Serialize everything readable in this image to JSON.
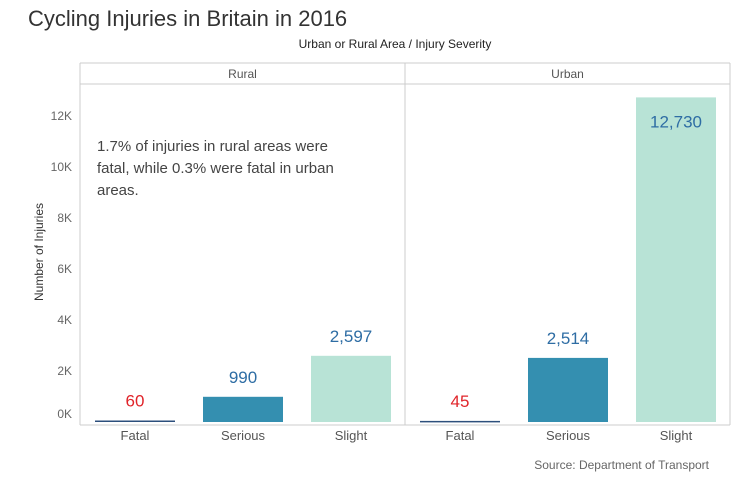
{
  "chart_data": {
    "type": "bar",
    "title": "Cycling Injuries in Britain in 2016",
    "header": "Urban or Rural Area / Injury Severity",
    "ylabel": "Number of Injuries",
    "ylim": [
      0,
      13000
    ],
    "yticks": [
      0,
      2000,
      4000,
      6000,
      8000,
      10000,
      12000
    ],
    "ytick_labels": [
      "0K",
      "2K",
      "4K",
      "6K",
      "8K",
      "10K",
      "12K"
    ],
    "categories": [
      "Fatal",
      "Serious",
      "Slight"
    ],
    "bar_colors": [
      "#2c4f7c",
      "#348fb0",
      "#b8e3d6"
    ],
    "label_colors": [
      "#e0242a",
      "#2e6da4",
      "#2e6da4"
    ],
    "panels": [
      {
        "name": "Rural",
        "values": [
          60,
          990,
          2597
        ],
        "value_labels": [
          "60",
          "990",
          "2,597"
        ]
      },
      {
        "name": "Urban",
        "values": [
          45,
          2514,
          12730
        ],
        "value_labels": [
          "45",
          "2,514",
          "12,730"
        ]
      }
    ],
    "annotation": [
      "1.7% of injuries in rural areas were",
      "fatal, while 0.3% were fatal in urban",
      "areas."
    ],
    "source": "Source: Department of Transport",
    "grid": false
  }
}
